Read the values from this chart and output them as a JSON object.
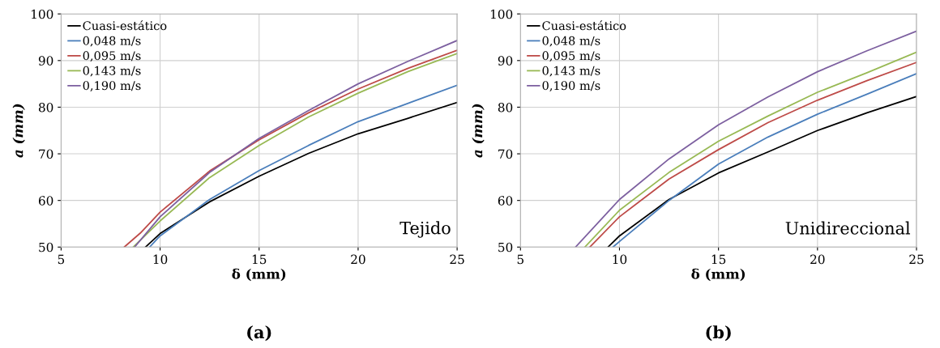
{
  "chart_data": [
    {
      "type": "line",
      "title": "(a)",
      "xlabel": "δ (mm)",
      "ylabel": "a (mm)",
      "annotations": [
        "Tejido"
      ],
      "xlim": [
        5,
        25
      ],
      "ylim": [
        50,
        100
      ],
      "xticks": [
        5,
        10,
        15,
        20,
        25
      ],
      "yticks": [
        50,
        60,
        70,
        80,
        90,
        100
      ],
      "grid": true,
      "legend": "top left",
      "series": [
        {
          "name": "Cuasi-estático",
          "color": "#000000",
          "x": [
            9.26,
            10,
            12.5,
            15,
            17.5,
            20,
            22.5,
            25
          ],
          "values": [
            50,
            52.9,
            59.7,
            65.2,
            70.1,
            74.3,
            77.6,
            81.0
          ]
        },
        {
          "name": "0,048 m/s",
          "color": "#4a7ebb",
          "x": [
            9.47,
            10,
            12.5,
            15,
            17.5,
            20,
            22.5,
            25
          ],
          "values": [
            50,
            52.4,
            60.2,
            66.4,
            71.8,
            76.9,
            80.8,
            84.7
          ]
        },
        {
          "name": "0,095 m/s",
          "color": "#be4b48",
          "x": [
            8.19,
            9,
            10,
            12.5,
            15,
            17.5,
            20,
            22.5,
            25
          ],
          "values": [
            50,
            53.0,
            57.5,
            66.3,
            73.0,
            78.8,
            83.9,
            88.3,
            92.2
          ]
        },
        {
          "name": "0,143 m/s",
          "color": "#98b954",
          "x": [
            8.64,
            10,
            12.5,
            15,
            17.5,
            20,
            22.5,
            25
          ],
          "values": [
            50,
            55.6,
            64.9,
            71.8,
            77.9,
            83.0,
            87.6,
            91.5
          ]
        },
        {
          "name": "0,190 m/s",
          "color": "#7d60a0",
          "x": [
            8.71,
            10,
            12.5,
            15,
            17.5,
            20,
            22.5,
            25
          ],
          "values": [
            50,
            56.5,
            66.0,
            73.3,
            79.3,
            85.0,
            89.8,
            94.3
          ]
        }
      ]
    },
    {
      "type": "line",
      "title": "(b)",
      "xlabel": "δ (mm)",
      "ylabel": "a (mm)",
      "annotations": [
        "Unidireccional"
      ],
      "xlim": [
        5,
        25
      ],
      "ylim": [
        50,
        100
      ],
      "xticks": [
        5,
        10,
        15,
        20,
        25
      ],
      "yticks": [
        50,
        60,
        70,
        80,
        90,
        100
      ],
      "grid": true,
      "legend": "top left",
      "series": [
        {
          "name": "Cuasi-estático",
          "color": "#000000",
          "x": [
            9.42,
            10,
            12.5,
            15,
            17.5,
            20,
            22.5,
            25
          ],
          "values": [
            50,
            52.4,
            60.2,
            65.9,
            70.4,
            75.0,
            78.8,
            82.3
          ]
        },
        {
          "name": "0,048 m/s",
          "color": "#4a7ebb",
          "x": [
            9.67,
            10,
            12.5,
            15,
            17.5,
            20,
            22.5,
            25
          ],
          "values": [
            50,
            51.2,
            60.0,
            67.8,
            73.6,
            78.5,
            82.8,
            87.2
          ]
        },
        {
          "name": "0,095 m/s",
          "color": "#be4b48",
          "x": [
            8.5,
            10,
            12.5,
            15,
            17.5,
            20,
            22.5,
            25
          ],
          "values": [
            50,
            56.5,
            64.6,
            70.9,
            76.7,
            81.5,
            85.7,
            89.6
          ]
        },
        {
          "name": "0,143 m/s",
          "color": "#98b954",
          "x": [
            8.25,
            10,
            12.5,
            15,
            17.5,
            20,
            22.5,
            25
          ],
          "values": [
            50,
            57.9,
            66.0,
            72.7,
            78.1,
            83.2,
            87.4,
            91.8
          ]
        },
        {
          "name": "0,190 m/s",
          "color": "#7d60a0",
          "x": [
            7.78,
            10,
            12.5,
            15,
            17.5,
            20,
            22.5,
            25
          ],
          "values": [
            50,
            60.2,
            68.9,
            76.2,
            82.2,
            87.6,
            92.1,
            96.3
          ]
        }
      ]
    }
  ]
}
